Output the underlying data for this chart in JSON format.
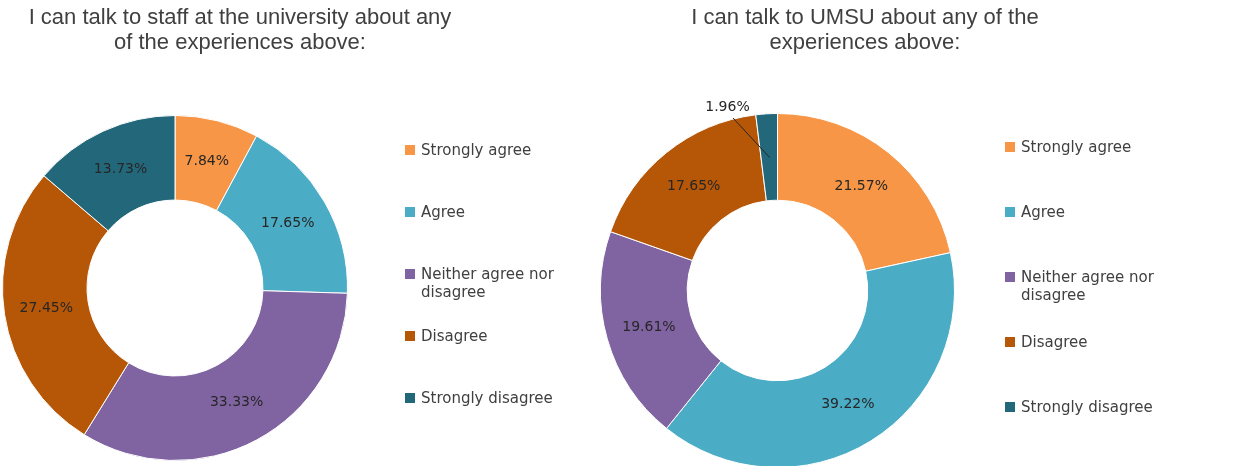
{
  "chart_data": [
    {
      "type": "donut",
      "title": "I can talk to staff at the university about any of the experiences above:",
      "categories": [
        "Strongly agree",
        "Agree",
        "Neither agree nor disagree",
        "Disagree",
        "Strongly disagree"
      ],
      "values": [
        7.84,
        17.65,
        33.33,
        27.45,
        13.73
      ],
      "value_labels": [
        "7.84%",
        "17.65%",
        "33.33%",
        "27.45%",
        "13.73%"
      ],
      "colors": [
        "#f79646",
        "#4bacc6",
        "#8064a2",
        "#b65708",
        "#23687a"
      ],
      "legend": "right"
    },
    {
      "type": "donut",
      "title": "I can talk to UMSU about any of the experiences above:",
      "categories": [
        "Strongly agree",
        "Agree",
        "Neither agree nor disagree",
        "Disagree",
        "Strongly disagree"
      ],
      "values": [
        21.57,
        39.22,
        19.61,
        17.65,
        1.96
      ],
      "value_labels": [
        "21.57%",
        "39.22%",
        "19.61%",
        "17.65%",
        "1.96%"
      ],
      "colors": [
        "#f79646",
        "#4bacc6",
        "#8064a2",
        "#b65708",
        "#23687a"
      ],
      "legend": "right"
    }
  ]
}
